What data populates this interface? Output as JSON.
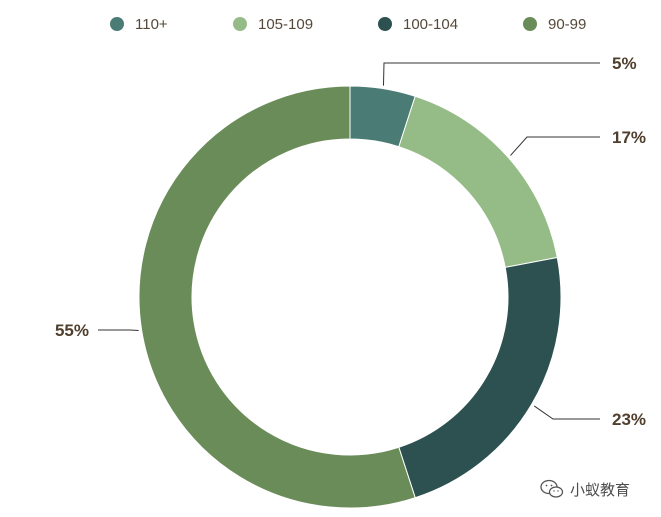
{
  "chart_data": {
    "type": "pie",
    "donut": true,
    "title": "",
    "legend_position": "top",
    "slices": [
      {
        "name": "110+",
        "value": 5,
        "label": "5%",
        "color": "#4a7c75"
      },
      {
        "name": "105-109",
        "value": 17,
        "label": "17%",
        "color": "#95bb86"
      },
      {
        "name": "100-104",
        "value": 23,
        "label": "23%",
        "color": "#2d5150"
      },
      {
        "name": "90-99",
        "value": 55,
        "label": "55%",
        "color": "#6a8c58"
      }
    ]
  },
  "watermark": {
    "icon": "wechat-icon",
    "text": "小蚁教育"
  }
}
